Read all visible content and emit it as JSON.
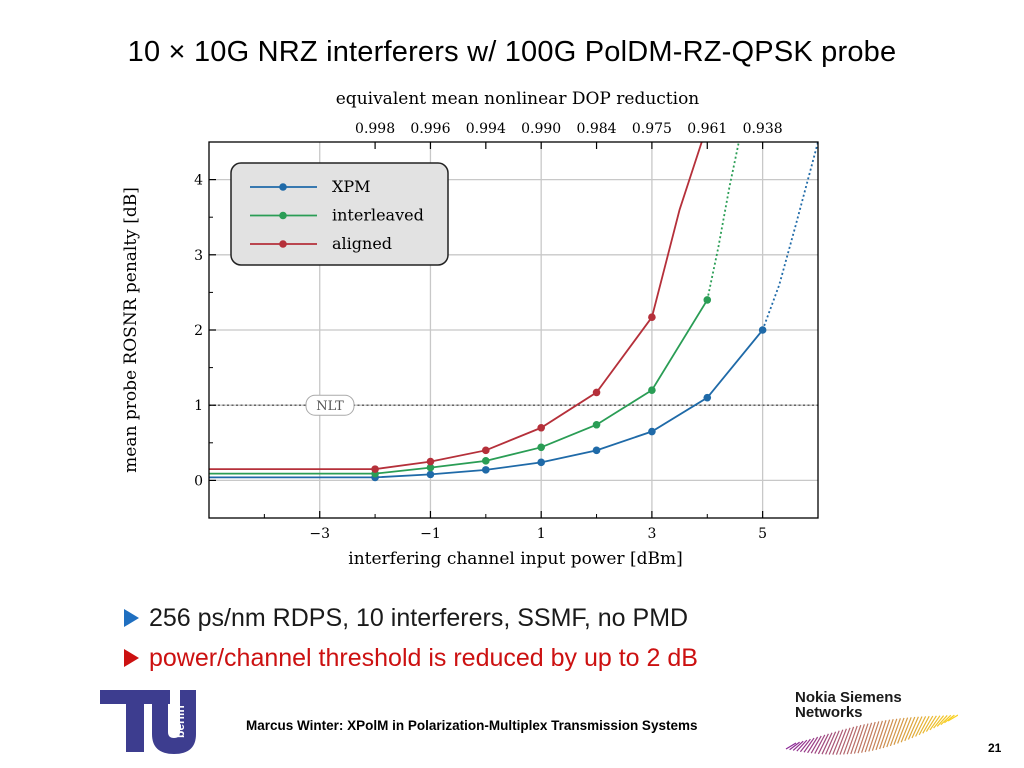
{
  "slide": {
    "title": "10 × 10G NRZ interferers w/ 100G PolDM-RZ-QPSK probe",
    "page_number": "21",
    "footer": "Marcus Winter: XPolM in Polarization-Multiplex Transmission Systems"
  },
  "bullets": [
    {
      "text": "256 ps/nm RDPS, 10 interferers, SSMF, no PMD",
      "color": "#1a1a1a",
      "marker_color": "#1f6fc0"
    },
    {
      "text": "power/channel threshold is reduced by up to 2 dB",
      "color": "#cc1111",
      "marker_color": "#cc1111"
    }
  ],
  "logos": {
    "tu_berlin": {
      "main": "TU",
      "sub": "berlin",
      "color": "#3d3d8f"
    },
    "nsn": {
      "line1": "Nokia Siemens",
      "line2": "Networks"
    }
  },
  "chart_data": {
    "type": "line",
    "title": "",
    "xlabel": "interfering channel input power [dBm]",
    "ylabel": "mean probe ROSNR penalty [dB]",
    "top_axis_label": "equivalent mean nonlinear DOP reduction",
    "xlim": [
      -5,
      6
    ],
    "ylim": [
      -0.5,
      4.5
    ],
    "x_ticks": [
      -3,
      -1,
      1,
      3,
      5
    ],
    "x_tick_labels": [
      "−3",
      "−1",
      "1",
      "3",
      "5"
    ],
    "y_ticks": [
      0,
      1,
      2,
      3,
      4
    ],
    "y_tick_labels": [
      "0",
      "1",
      "2",
      "3",
      "4"
    ],
    "top_ticks": [
      -2,
      -1,
      0,
      1,
      2,
      3,
      4,
      5
    ],
    "top_tick_labels": [
      "0.998",
      "0.996",
      "0.994",
      "0.990",
      "0.984",
      "0.975",
      "0.961",
      "0.938"
    ],
    "grid": true,
    "legend_position": "top-left",
    "reference_line": {
      "y": 1,
      "label": "NLT"
    },
    "series": [
      {
        "name": "XPM",
        "color": "#1f6aa8",
        "x": [
          -2,
          -1,
          0,
          1,
          2,
          3,
          4,
          5
        ],
        "y": [
          0.04,
          0.08,
          0.14,
          0.24,
          0.4,
          0.65,
          1.1,
          2.0
        ],
        "x_dotted": [
          5,
          5.3,
          5.6,
          6
        ],
        "y_dotted": [
          2.0,
          2.6,
          3.4,
          4.5
        ]
      },
      {
        "name": "interleaved",
        "color": "#2a9d55",
        "x": [
          -2,
          -1,
          0,
          1,
          2,
          3,
          4
        ],
        "y": [
          0.09,
          0.17,
          0.26,
          0.44,
          0.74,
          1.2,
          2.4
        ],
        "x_dotted": [
          4,
          4.2,
          4.4,
          4.57
        ],
        "y_dotted": [
          2.4,
          3.1,
          3.9,
          4.5
        ]
      },
      {
        "name": "aligned",
        "color": "#b5303a",
        "x": [
          -2,
          -1,
          0,
          1,
          2,
          3
        ],
        "y": [
          0.15,
          0.25,
          0.4,
          0.7,
          1.17,
          2.17
        ],
        "x_dotted": [],
        "y_dotted": []
      }
    ]
  }
}
